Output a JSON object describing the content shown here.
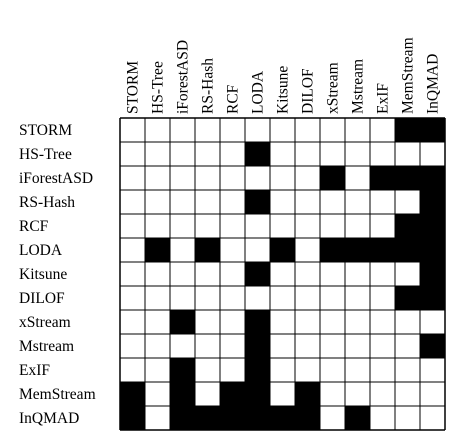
{
  "matrix": {
    "columns": [
      "STORM",
      "HS-Tree",
      "iForestASD",
      "RS-Hash",
      "RCF",
      "LODA",
      "Kitsune",
      "DILOF",
      "xStream",
      "Mstream",
      "ExIF",
      "MemStream",
      "InQMAD"
    ],
    "rows": [
      "STORM",
      "HS-Tree",
      "iForestASD",
      "RS-Hash",
      "RCF",
      "LODA",
      "Kitsune",
      "DILOF",
      "xStream",
      "Mstream",
      "ExIF",
      "MemStream",
      "InQMAD"
    ],
    "cells": [
      [
        0,
        0,
        0,
        0,
        0,
        0,
        0,
        0,
        0,
        0,
        0,
        1,
        1
      ],
      [
        0,
        0,
        0,
        0,
        0,
        1,
        0,
        0,
        0,
        0,
        0,
        0,
        0
      ],
      [
        0,
        0,
        0,
        0,
        0,
        0,
        0,
        0,
        1,
        0,
        1,
        1,
        1
      ],
      [
        0,
        0,
        0,
        0,
        0,
        1,
        0,
        0,
        0,
        0,
        0,
        0,
        1
      ],
      [
        0,
        0,
        0,
        0,
        0,
        0,
        0,
        0,
        0,
        0,
        0,
        1,
        1
      ],
      [
        0,
        1,
        0,
        1,
        0,
        0,
        1,
        0,
        1,
        1,
        1,
        1,
        1
      ],
      [
        0,
        0,
        0,
        0,
        0,
        1,
        0,
        0,
        0,
        0,
        0,
        0,
        1
      ],
      [
        0,
        0,
        0,
        0,
        0,
        0,
        0,
        0,
        0,
        0,
        0,
        1,
        1
      ],
      [
        0,
        0,
        1,
        0,
        0,
        1,
        0,
        0,
        0,
        0,
        0,
        0,
        0
      ],
      [
        0,
        0,
        0,
        0,
        0,
        1,
        0,
        0,
        0,
        0,
        0,
        0,
        1
      ],
      [
        0,
        0,
        1,
        0,
        0,
        1,
        0,
        0,
        0,
        0,
        0,
        0,
        0
      ],
      [
        1,
        0,
        1,
        0,
        1,
        1,
        0,
        1,
        0,
        0,
        0,
        0,
        0
      ],
      [
        1,
        0,
        1,
        1,
        1,
        1,
        1,
        1,
        0,
        1,
        0,
        0,
        0
      ]
    ],
    "colors": {
      "filled": "#000000",
      "empty": "#ffffff",
      "border": "#000000"
    }
  }
}
